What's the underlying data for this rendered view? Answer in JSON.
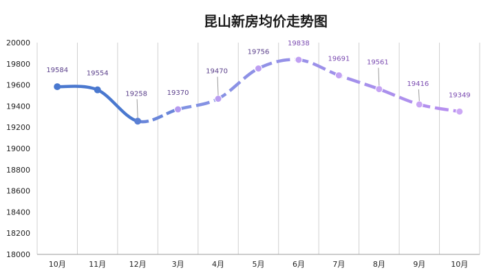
{
  "chart_data": {
    "type": "line",
    "title": "昆山新房均价走势图",
    "categories": [
      "10月",
      "11月",
      "12月",
      "3月",
      "4月",
      "5月",
      "6月",
      "7月",
      "8月",
      "9月",
      "10月"
    ],
    "values": [
      19584,
      19554,
      19258,
      19370,
      19470,
      19756,
      19838,
      19691,
      19561,
      19416,
      19349
    ],
    "ylim": [
      18000,
      20000
    ],
    "yticks": [
      18000,
      18200,
      18400,
      18600,
      18800,
      19000,
      19200,
      19400,
      19600,
      19800,
      20000
    ],
    "grid": "vertical",
    "legend": "none",
    "smooth": true,
    "colors": {
      "segment_solid": "#4a78cf",
      "segment_gradient_start": "#7f92e2",
      "segment_gradient_end": "#b98ff0",
      "label_dark": "#5a3f8a",
      "label_mid": "#7a4ab0"
    }
  }
}
